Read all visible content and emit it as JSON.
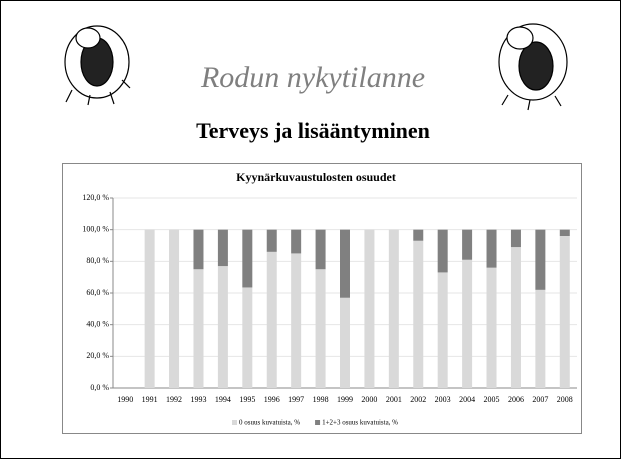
{
  "slide": {
    "title": "Rodun nykytilanne",
    "subtitle": "Terveys ja lisääntyminen"
  },
  "chart_data": {
    "type": "bar",
    "stacked": true,
    "title": "Kyynärkuvaustulosten osuudet",
    "categories": [
      "1990",
      "1991",
      "1992",
      "1993",
      "1994",
      "1995",
      "1996",
      "1997",
      "1998",
      "1999",
      "2000",
      "2001",
      "2002",
      "2003",
      "2004",
      "2005",
      "2006",
      "2007",
      "2008"
    ],
    "series": [
      {
        "name": "0 osuus kuvatuista, %",
        "color": "#d9d9d9",
        "values": [
          null,
          100,
          100,
          75,
          77,
          63.5,
          86,
          85,
          75,
          57,
          100,
          100,
          93,
          73,
          81,
          76,
          89,
          62,
          96
        ]
      },
      {
        "name": "1+2+3 osuus kuvatuista, %",
        "color": "#808080",
        "values": [
          null,
          0,
          0,
          25,
          23,
          36.5,
          14,
          15,
          25,
          43,
          0,
          0,
          7,
          27,
          19,
          24,
          11,
          38,
          4
        ]
      }
    ],
    "ylim": [
      0,
      120
    ],
    "yticks": [
      {
        "value": 0,
        "label": "0,0 %"
      },
      {
        "value": 20,
        "label": "20,0 %"
      },
      {
        "value": 40,
        "label": "40,0 %"
      },
      {
        "value": 60,
        "label": "60,0 %"
      },
      {
        "value": 80,
        "label": "80,0 %"
      },
      {
        "value": 100,
        "label": "100,0 %"
      },
      {
        "value": 120,
        "label": "120,0 %"
      }
    ],
    "grid": true,
    "legend": "bottom"
  }
}
